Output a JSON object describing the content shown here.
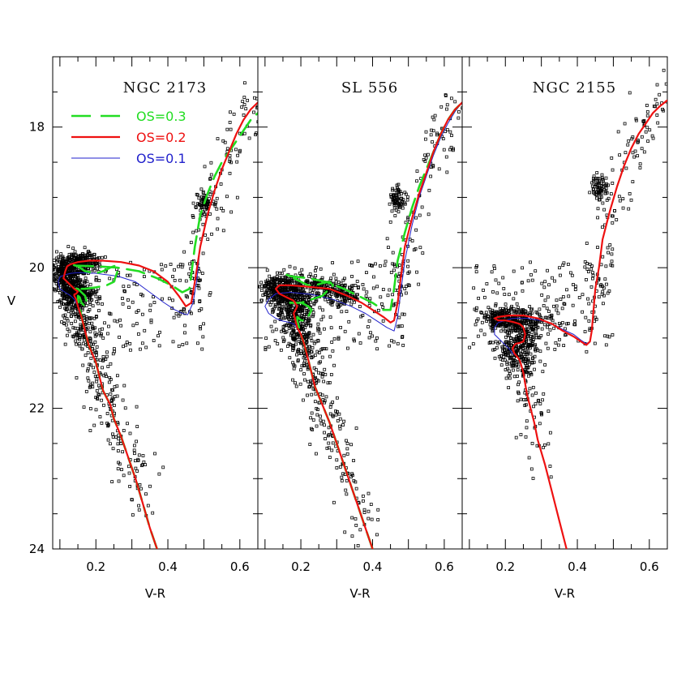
{
  "figure": {
    "ylabel": "V"
  },
  "legend": [
    {
      "label": "OS=0.3",
      "color": "#22dd22",
      "style": "dashed"
    },
    {
      "label": "OS=0.2",
      "color": "#ee1111",
      "style": "solid"
    },
    {
      "label": "OS=0.1",
      "color": "#2222cc",
      "style": "thin"
    }
  ],
  "chart_data": [
    {
      "type": "scatter",
      "title": "NGC 2173",
      "xlabel": "V-R",
      "ylabel": "V",
      "xlim": [
        0.08,
        0.65
      ],
      "ylim": [
        24,
        17.0
      ],
      "x_ticks": [
        "0.2",
        "0.4",
        "0.6"
      ],
      "y_ticks": [
        "18",
        "20",
        "22",
        "24"
      ],
      "series": [
        {
          "name": "OS=0.3",
          "color": "#22dd22",
          "style": "dashed",
          "x": [
            0.37,
            0.35,
            0.33,
            0.31,
            0.29,
            0.27,
            0.25,
            0.24,
            0.22,
            0.21,
            0.2,
            0.18,
            0.17,
            0.16,
            0.155,
            0.15,
            0.15,
            0.155,
            0.16,
            0.17,
            0.175,
            0.17,
            0.16,
            0.15,
            0.145,
            0.14,
            0.15,
            0.17,
            0.2,
            0.23,
            0.25,
            0.26,
            0.255,
            0.24,
            0.22,
            0.2,
            0.17,
            0.15,
            0.13,
            0.14,
            0.2,
            0.26,
            0.32,
            0.37,
            0.41,
            0.44,
            0.46,
            0.475,
            0.49,
            0.51,
            0.53,
            0.55,
            0.57,
            0.59,
            0.61,
            0.63,
            0.65
          ],
          "y": [
            24.0,
            23.7,
            23.35,
            23.0,
            22.7,
            22.4,
            22.15,
            21.95,
            21.75,
            21.55,
            21.35,
            21.1,
            20.9,
            20.7,
            20.55,
            20.45,
            20.4,
            20.42,
            20.5,
            20.55,
            20.5,
            20.4,
            20.35,
            20.3,
            20.3,
            20.3,
            20.3,
            20.3,
            20.28,
            20.25,
            20.2,
            20.05,
            19.97,
            20.0,
            20.05,
            20.08,
            20.05,
            19.98,
            19.95,
            19.97,
            19.98,
            20.0,
            20.05,
            20.15,
            20.25,
            20.35,
            20.3,
            19.7,
            19.25,
            18.95,
            18.7,
            18.5,
            18.35,
            18.2,
            18.05,
            17.9,
            17.8
          ]
        },
        {
          "name": "OS=0.2",
          "color": "#ee1111",
          "style": "solid",
          "x": [
            0.37,
            0.35,
            0.33,
            0.31,
            0.29,
            0.27,
            0.25,
            0.24,
            0.22,
            0.21,
            0.2,
            0.18,
            0.17,
            0.16,
            0.15,
            0.145,
            0.14,
            0.14,
            0.145,
            0.15,
            0.14,
            0.13,
            0.12,
            0.11,
            0.115,
            0.12,
            0.13,
            0.15,
            0.18,
            0.22,
            0.27,
            0.32,
            0.36,
            0.4,
            0.43,
            0.45,
            0.465,
            0.475,
            0.49,
            0.51,
            0.53,
            0.55,
            0.57,
            0.59,
            0.61,
            0.63,
            0.65
          ],
          "y": [
            24.0,
            23.7,
            23.35,
            23.0,
            22.7,
            22.4,
            22.15,
            21.95,
            21.75,
            21.55,
            21.35,
            21.1,
            20.9,
            20.7,
            20.55,
            20.45,
            20.4,
            20.38,
            20.37,
            20.34,
            20.3,
            20.25,
            20.2,
            20.15,
            20.05,
            19.98,
            19.95,
            19.92,
            19.9,
            19.9,
            19.92,
            19.97,
            20.05,
            20.2,
            20.4,
            20.55,
            20.5,
            20.2,
            19.7,
            19.25,
            18.9,
            18.6,
            18.35,
            18.1,
            17.9,
            17.75,
            17.65
          ]
        },
        {
          "name": "OS=0.1",
          "color": "#2222cc",
          "style": "thin",
          "x": [
            0.37,
            0.35,
            0.33,
            0.31,
            0.29,
            0.27,
            0.25,
            0.24,
            0.22,
            0.21,
            0.2,
            0.18,
            0.17,
            0.16,
            0.15,
            0.14,
            0.13,
            0.115,
            0.1,
            0.095,
            0.1,
            0.115,
            0.13,
            0.15,
            0.2,
            0.26,
            0.31,
            0.35,
            0.39,
            0.42,
            0.44,
            0.455,
            0.47,
            0.48,
            0.49,
            0.51,
            0.53,
            0.55,
            0.57,
            0.59,
            0.61,
            0.63,
            0.65
          ],
          "y": [
            24.0,
            23.7,
            23.35,
            23.0,
            22.7,
            22.4,
            22.15,
            21.95,
            21.75,
            21.55,
            21.35,
            21.1,
            20.9,
            20.7,
            20.55,
            20.45,
            20.4,
            20.35,
            20.3,
            20.2,
            20.13,
            20.1,
            20.08,
            20.07,
            20.08,
            20.12,
            20.2,
            20.35,
            20.5,
            20.6,
            20.65,
            20.67,
            20.5,
            20.2,
            19.7,
            19.25,
            18.9,
            18.6,
            18.35,
            18.1,
            17.9,
            17.75,
            17.65
          ]
        }
      ]
    },
    {
      "type": "scatter",
      "title": "SL 556",
      "xlabel": "V-R",
      "xlim": [
        0.08,
        0.65
      ],
      "ylim": [
        24,
        17.0
      ],
      "x_ticks": [
        "0.2",
        "0.4",
        "0.6"
      ],
      "series": [
        {
          "name": "OS=0.3",
          "color": "#22dd22",
          "style": "dashed",
          "x": [
            0.4,
            0.38,
            0.36,
            0.34,
            0.32,
            0.3,
            0.28,
            0.26,
            0.24,
            0.23,
            0.22,
            0.21,
            0.2,
            0.195,
            0.19,
            0.19,
            0.195,
            0.2,
            0.21,
            0.22,
            0.23,
            0.22,
            0.21,
            0.2,
            0.19,
            0.18,
            0.17,
            0.18,
            0.2,
            0.23,
            0.26,
            0.29,
            0.28,
            0.26,
            0.24,
            0.22,
            0.2,
            0.18,
            0.16,
            0.17,
            0.22,
            0.27,
            0.32,
            0.36,
            0.4,
            0.43,
            0.45,
            0.46,
            0.47,
            0.49,
            0.51,
            0.53,
            0.55,
            0.57,
            0.59,
            0.61,
            0.63,
            0.65
          ],
          "y": [
            24.0,
            23.7,
            23.4,
            23.1,
            22.8,
            22.5,
            22.2,
            21.95,
            21.7,
            21.5,
            21.3,
            21.1,
            20.95,
            20.85,
            20.75,
            20.7,
            20.72,
            20.75,
            20.75,
            20.7,
            20.6,
            20.55,
            20.52,
            20.5,
            20.5,
            20.5,
            20.5,
            20.5,
            20.5,
            20.45,
            20.4,
            20.25,
            20.2,
            20.22,
            20.25,
            20.25,
            20.2,
            20.15,
            20.1,
            20.12,
            20.15,
            20.2,
            20.3,
            20.4,
            20.5,
            20.6,
            20.6,
            20.3,
            19.9,
            19.5,
            19.15,
            18.85,
            18.6,
            18.35,
            18.1,
            17.9,
            17.75,
            17.65
          ]
        },
        {
          "name": "OS=0.2",
          "color": "#ee1111",
          "style": "solid",
          "x": [
            0.4,
            0.38,
            0.36,
            0.34,
            0.32,
            0.3,
            0.28,
            0.26,
            0.24,
            0.23,
            0.22,
            0.21,
            0.2,
            0.19,
            0.185,
            0.18,
            0.19,
            0.18,
            0.16,
            0.14,
            0.13,
            0.14,
            0.17,
            0.22,
            0.28,
            0.33,
            0.37,
            0.4,
            0.43,
            0.45,
            0.46,
            0.47,
            0.48,
            0.49,
            0.51,
            0.53,
            0.55,
            0.57,
            0.59,
            0.61,
            0.63,
            0.65
          ],
          "y": [
            24.0,
            23.7,
            23.4,
            23.1,
            22.8,
            22.5,
            22.2,
            21.95,
            21.7,
            21.5,
            21.3,
            21.1,
            20.95,
            20.85,
            20.75,
            20.65,
            20.55,
            20.47,
            20.42,
            20.37,
            20.3,
            20.25,
            20.25,
            20.27,
            20.3,
            20.4,
            20.5,
            20.6,
            20.7,
            20.78,
            20.75,
            20.5,
            20.1,
            19.7,
            19.3,
            18.95,
            18.65,
            18.35,
            18.1,
            17.9,
            17.75,
            17.65
          ]
        },
        {
          "name": "OS=0.1",
          "color": "#2222cc",
          "style": "thin",
          "x": [
            0.4,
            0.38,
            0.36,
            0.34,
            0.32,
            0.3,
            0.28,
            0.26,
            0.24,
            0.23,
            0.22,
            0.21,
            0.2,
            0.19,
            0.18,
            0.17,
            0.15,
            0.13,
            0.11,
            0.1,
            0.11,
            0.13,
            0.17,
            0.23,
            0.29,
            0.34,
            0.38,
            0.41,
            0.44,
            0.46,
            0.47,
            0.48,
            0.49,
            0.51,
            0.53,
            0.55,
            0.57,
            0.59,
            0.61,
            0.63,
            0.65
          ],
          "y": [
            24.0,
            23.7,
            23.4,
            23.1,
            22.8,
            22.5,
            22.2,
            21.95,
            21.7,
            21.5,
            21.3,
            21.1,
            20.95,
            20.85,
            20.8,
            20.78,
            20.76,
            20.72,
            20.65,
            20.55,
            20.45,
            20.37,
            20.35,
            20.38,
            20.45,
            20.55,
            20.65,
            20.75,
            20.85,
            20.9,
            20.7,
            20.3,
            19.9,
            19.4,
            19.0,
            18.7,
            18.4,
            18.15,
            17.95,
            17.78,
            17.65
          ]
        }
      ]
    },
    {
      "type": "scatter",
      "title": "NGC 2155",
      "xlabel": "V-R",
      "xlim": [
        0.08,
        0.65
      ],
      "ylim": [
        24,
        17.0
      ],
      "x_ticks": [
        "0.2",
        "0.4",
        "0.6"
      ],
      "series": [
        {
          "name": "OS=0.2",
          "color": "#ee1111",
          "style": "solid",
          "x": [
            0.37,
            0.35,
            0.33,
            0.31,
            0.29,
            0.28,
            0.27,
            0.26,
            0.255,
            0.25,
            0.245,
            0.24,
            0.235,
            0.23,
            0.225,
            0.22,
            0.225,
            0.23,
            0.24,
            0.25,
            0.255,
            0.25,
            0.24,
            0.22,
            0.2,
            0.18,
            0.17,
            0.18,
            0.21,
            0.25,
            0.29,
            0.33,
            0.36,
            0.39,
            0.41,
            0.425,
            0.435,
            0.44,
            0.445,
            0.45,
            0.46,
            0.47,
            0.49,
            0.51,
            0.53,
            0.55,
            0.57,
            0.59,
            0.61,
            0.63,
            0.65
          ],
          "y": [
            24.0,
            23.6,
            23.2,
            22.8,
            22.45,
            22.2,
            22.0,
            21.8,
            21.65,
            21.5,
            21.4,
            21.32,
            21.28,
            21.25,
            21.22,
            21.15,
            21.1,
            21.08,
            21.07,
            21.05,
            20.95,
            20.85,
            20.8,
            20.77,
            20.75,
            20.75,
            20.72,
            20.7,
            20.68,
            20.68,
            20.72,
            20.8,
            20.9,
            20.98,
            21.05,
            21.1,
            21.05,
            20.9,
            20.6,
            20.3,
            20.0,
            19.6,
            19.2,
            18.85,
            18.55,
            18.3,
            18.1,
            17.95,
            17.8,
            17.7,
            17.62
          ]
        },
        {
          "name": "OS=0.1",
          "color": "#2222cc",
          "style": "thin",
          "x": [
            0.37,
            0.35,
            0.33,
            0.31,
            0.29,
            0.28,
            0.27,
            0.26,
            0.255,
            0.25,
            0.245,
            0.24,
            0.235,
            0.23,
            0.22,
            0.21,
            0.19,
            0.18,
            0.17,
            0.17,
            0.18,
            0.22,
            0.26,
            0.3,
            0.33,
            0.36,
            0.39,
            0.41,
            0.425,
            0.435,
            0.44,
            0.445,
            0.45,
            0.46,
            0.47,
            0.49,
            0.51,
            0.53,
            0.55,
            0.57,
            0.59,
            0.61,
            0.63,
            0.65
          ],
          "y": [
            24.0,
            23.6,
            23.2,
            22.8,
            22.45,
            22.2,
            22.0,
            21.8,
            21.65,
            21.5,
            21.4,
            21.32,
            21.28,
            21.25,
            21.22,
            21.15,
            21.05,
            21.0,
            20.95,
            20.85,
            20.78,
            20.72,
            20.72,
            20.75,
            20.8,
            20.88,
            20.95,
            21.03,
            21.08,
            21.05,
            20.9,
            20.6,
            20.3,
            20.0,
            19.6,
            19.2,
            18.85,
            18.55,
            18.3,
            18.1,
            17.95,
            17.8,
            17.7,
            17.62
          ]
        }
      ]
    }
  ]
}
